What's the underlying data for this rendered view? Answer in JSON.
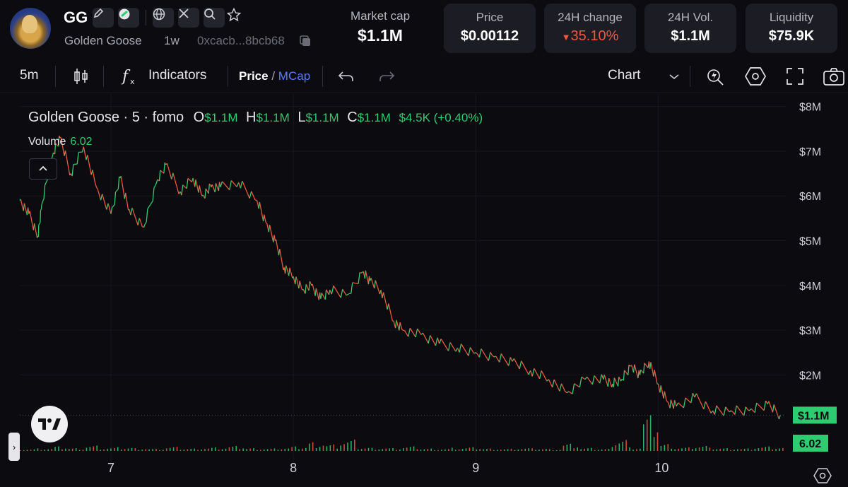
{
  "header": {
    "ticker": "GG",
    "name": "Golden Goose",
    "age": "1w",
    "address": "0xcacb...8bcb68",
    "icons": [
      "pencil-icon",
      "pump-icon",
      "globe-icon",
      "x-icon",
      "search-icon",
      "star-icon",
      "copy-icon"
    ]
  },
  "stats": {
    "market_cap": {
      "label": "Market cap",
      "value": "$1.1M"
    },
    "price": {
      "label": "Price",
      "value": "$0.00112"
    },
    "change_24h": {
      "label": "24H change",
      "value": "35.10%",
      "arrow": "▼",
      "color": "#f0573e"
    },
    "volume_24h": {
      "label": "24H Vol.",
      "value": "$1.1M"
    },
    "liquidity": {
      "label": "Liquidity",
      "value": "$75.9K"
    }
  },
  "toolbar": {
    "interval": "5m",
    "indicators": "Indicators",
    "price": "Price",
    "slash": "/",
    "mcap": "MCap",
    "chart_type": "Chart"
  },
  "legend": {
    "title": "Golden Goose · 5 · fomo",
    "o_label": "O",
    "o_value": "$1.1M",
    "h_label": "H",
    "h_value": "$1.1M",
    "l_label": "L",
    "l_value": "$1.1M",
    "c_label": "C",
    "c_value": "$1.1M",
    "change": "$4.5K (+0.40%)",
    "volume_label": "Volume",
    "volume_value": "6.02"
  },
  "chart_data": {
    "type": "line",
    "y_unit": "market cap (USD)",
    "ylim": [
      0.3,
      8.2
    ],
    "y_ticks": [
      "$8M",
      "$7M",
      "$6M",
      "$5M",
      "$4M",
      "$3M",
      "$2M"
    ],
    "y_tick_values": [
      8,
      7,
      6,
      5,
      4,
      3,
      2
    ],
    "x_ticks": [
      "7",
      "8",
      "9",
      "10"
    ],
    "x_tick_values": [
      7,
      8,
      9,
      10
    ],
    "xlim": [
      6.5,
      10.7
    ],
    "series": [
      {
        "x": [
          6.5,
          6.55,
          6.6,
          6.62,
          6.68,
          6.72,
          6.78,
          6.85,
          6.92,
          7.0,
          7.05,
          7.1,
          7.18,
          7.25,
          7.3,
          7.38,
          7.45,
          7.5,
          7.55,
          7.6,
          7.7,
          7.8,
          7.85,
          7.9,
          7.95,
          8.0,
          8.05,
          8.1,
          8.15,
          8.2,
          8.3,
          8.38,
          8.42,
          8.48,
          8.55,
          8.6,
          8.7,
          8.8,
          8.9,
          9.0,
          9.1,
          9.2,
          9.3,
          9.4,
          9.5,
          9.6,
          9.7,
          9.75,
          9.8,
          9.85,
          9.9,
          9.95,
          10.0,
          10.05,
          10.1,
          10.2,
          10.3,
          10.4,
          10.5,
          10.6,
          10.67
        ],
        "values": [
          5.9,
          5.6,
          5.1,
          5.8,
          6.9,
          7.3,
          6.5,
          7.1,
          6.2,
          5.6,
          6.4,
          5.7,
          5.3,
          6.3,
          6.7,
          6.1,
          6.4,
          6.0,
          6.2,
          6.2,
          6.3,
          5.9,
          5.4,
          5.0,
          4.4,
          4.2,
          3.9,
          4.0,
          3.7,
          3.9,
          3.8,
          4.3,
          4.1,
          3.9,
          3.2,
          3.0,
          2.9,
          2.7,
          2.6,
          2.5,
          2.4,
          2.3,
          2.1,
          1.9,
          1.6,
          1.9,
          1.9,
          1.8,
          1.9,
          2.2,
          2.0,
          2.3,
          1.8,
          1.4,
          1.3,
          1.5,
          1.2,
          1.2,
          1.2,
          1.35,
          1.1
        ]
      }
    ],
    "volume": {
      "note": "volume histogram at bottom",
      "values": [
        0.05,
        0.07,
        0.12,
        0.08,
        0.15,
        0.09,
        0.1,
        0.08,
        0.06,
        0.11,
        0.07,
        0.09,
        0.1,
        0.13,
        0.08,
        0.07,
        0.09,
        0.12,
        0.25,
        0.18,
        0.3,
        0.1,
        0.09,
        0.08,
        0.12,
        0.07,
        0.06,
        0.09,
        0.1,
        0.07,
        0.06,
        0.08,
        0.07,
        0.05,
        0.2,
        0.08,
        0.06,
        0.35,
        0.1,
        0.95,
        0.2,
        0.1,
        0.15,
        0.09,
        0.08,
        0.07,
        0.12,
        0.1
      ]
    },
    "current_label": "$1.1M",
    "current_value": 1.1,
    "current_color": "#2ecc71",
    "volume_badge": "6.02",
    "grid": true,
    "up_color": "#2ecc71",
    "down_color": "#f0573e"
  }
}
